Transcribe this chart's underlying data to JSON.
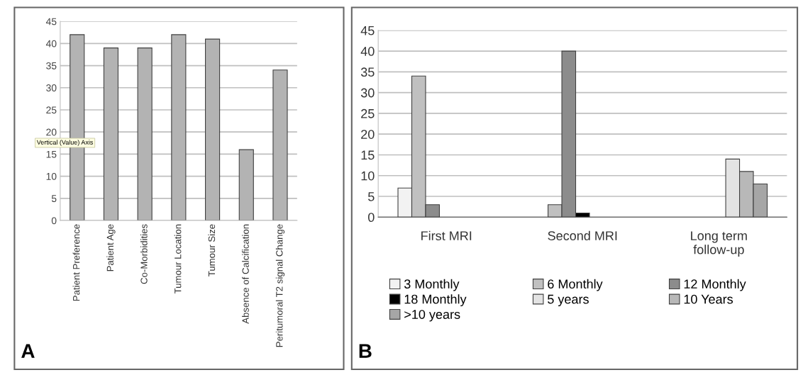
{
  "chart_data": [
    {
      "type": "bar",
      "categories": [
        "Patient Preference",
        "Patient Age",
        "Co-Morbidities",
        "Tumour Location",
        "Tumour Size",
        "Absence of Calcification",
        "Peritumoral T2 signal Change"
      ],
      "values": [
        42,
        39,
        39,
        42,
        41,
        16,
        34
      ],
      "color": "#b3b3b3",
      "ylim": [
        0,
        45
      ],
      "yticks": [
        0,
        5,
        10,
        15,
        20,
        25,
        30,
        35,
        40,
        45
      ],
      "grid": "y",
      "legend": false,
      "annotations": [
        "A",
        "Vertical (Value) Axis"
      ]
    },
    {
      "type": "bar",
      "categories": [
        "First MRI",
        "Second MRI",
        "Long term\nfollow-up"
      ],
      "series": [
        {
          "name": "3 Monthly",
          "color": "#f2f2f2",
          "values": [
            7,
            null,
            null
          ]
        },
        {
          "name": "6 Monthly",
          "color": "#c0c0c0",
          "values": [
            34,
            3,
            null
          ]
        },
        {
          "name": "12 Monthly",
          "color": "#8c8c8c",
          "values": [
            3,
            40,
            null
          ]
        },
        {
          "name": "18 Monthly",
          "color": "#000000",
          "values": [
            null,
            1,
            null
          ]
        },
        {
          "name": "5 years",
          "color": "#e3e3e3",
          "values": [
            null,
            null,
            14
          ]
        },
        {
          "name": "10 Years",
          "color": "#b8b8b8",
          "values": [
            null,
            null,
            11
          ]
        },
        {
          "name": ">10 years",
          "color": "#a6a6a6",
          "values": [
            null,
            null,
            8
          ]
        }
      ],
      "ylim": [
        0,
        45
      ],
      "yticks": [
        0,
        5,
        10,
        15,
        20,
        25,
        30,
        35,
        40,
        45
      ],
      "grid": "y",
      "legend": "bottom",
      "annotations": [
        "B"
      ]
    }
  ]
}
